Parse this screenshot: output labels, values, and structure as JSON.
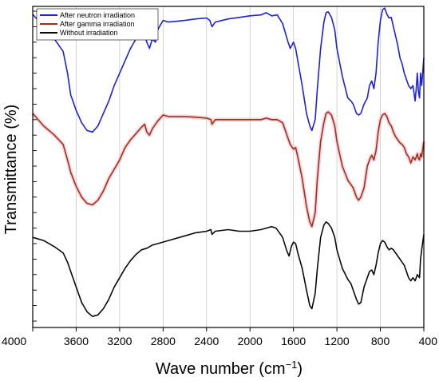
{
  "chart_data": {
    "type": "line",
    "title": "",
    "xlabel": "Wave number (cm",
    "xlabel_sup": "−1",
    "xlabel_close": ")",
    "ylabel": "Transmittance (%)",
    "xlim": [
      4000,
      400
    ],
    "x_reversed": true,
    "y_ticks_labeled": false,
    "ylim": [
      0,
      100
    ],
    "grid": "vertical",
    "legend_position": "top-left",
    "x_ticks": [
      4000,
      3600,
      3200,
      2800,
      2400,
      2000,
      1600,
      1200,
      800,
      400
    ],
    "x_tick_labels": [
      "4000",
      "3600",
      "3200",
      "2800",
      "2400",
      "2000",
      "1600",
      "1200",
      "800",
      "400"
    ],
    "series": [
      {
        "name": "After neutron irradiation",
        "color": "#1f1fe0",
        "points": [
          [
            4000,
            99
          ],
          [
            3900,
            95
          ],
          [
            3800,
            91
          ],
          [
            3720,
            87
          ],
          [
            3680,
            80
          ],
          [
            3650,
            73
          ],
          [
            3600,
            68
          ],
          [
            3550,
            64
          ],
          [
            3500,
            61.5
          ],
          [
            3450,
            61
          ],
          [
            3400,
            63
          ],
          [
            3350,
            67
          ],
          [
            3300,
            71
          ],
          [
            3250,
            76
          ],
          [
            3200,
            80
          ],
          [
            3150,
            84
          ],
          [
            3100,
            88
          ],
          [
            3050,
            91
          ],
          [
            3000,
            93
          ],
          [
            2980,
            94
          ],
          [
            2950,
            90
          ],
          [
            2925,
            88
          ],
          [
            2900,
            91
          ],
          [
            2870,
            90
          ],
          [
            2850,
            94
          ],
          [
            2800,
            97
          ],
          [
            2750,
            96.5
          ],
          [
            2600,
            97
          ],
          [
            2500,
            97.5
          ],
          [
            2400,
            97.8
          ],
          [
            2370,
            97
          ],
          [
            2350,
            95
          ],
          [
            2320,
            96.5
          ],
          [
            2200,
            97.5
          ],
          [
            2100,
            98
          ],
          [
            2000,
            98.5
          ],
          [
            1900,
            98.8
          ],
          [
            1850,
            99.5
          ],
          [
            1800,
            98.5
          ],
          [
            1750,
            98.8
          ],
          [
            1700,
            96
          ],
          [
            1650,
            90
          ],
          [
            1630,
            88
          ],
          [
            1600,
            90
          ],
          [
            1580,
            88
          ],
          [
            1560,
            84
          ],
          [
            1520,
            76
          ],
          [
            1480,
            67
          ],
          [
            1450,
            63
          ],
          [
            1430,
            61.5
          ],
          [
            1400,
            65
          ],
          [
            1380,
            75
          ],
          [
            1350,
            88
          ],
          [
            1320,
            96.5
          ],
          [
            1300,
            99.5
          ],
          [
            1280,
            99.8
          ],
          [
            1250,
            98
          ],
          [
            1220,
            94
          ],
          [
            1200,
            88
          ],
          [
            1150,
            79
          ],
          [
            1100,
            72
          ],
          [
            1070,
            71
          ],
          [
            1050,
            70
          ],
          [
            1020,
            67
          ],
          [
            1000,
            66.5
          ],
          [
            980,
            67
          ],
          [
            950,
            70
          ],
          [
            920,
            72
          ],
          [
            900,
            76
          ],
          [
            880,
            77.5
          ],
          [
            860,
            75
          ],
          [
            840,
            80
          ],
          [
            820,
            90
          ],
          [
            800,
            97
          ],
          [
            780,
            100.5
          ],
          [
            760,
            101
          ],
          [
            740,
            99
          ],
          [
            720,
            97.8
          ],
          [
            700,
            98
          ],
          [
            680,
            95
          ],
          [
            660,
            92
          ],
          [
            640,
            89
          ],
          [
            620,
            85
          ],
          [
            600,
            83
          ],
          [
            580,
            80
          ],
          [
            560,
            78
          ],
          [
            540,
            76
          ],
          [
            520,
            75
          ],
          [
            500,
            76
          ],
          [
            480,
            71
          ],
          [
            470,
            75
          ],
          [
            460,
            80
          ],
          [
            450,
            74
          ],
          [
            440,
            72
          ],
          [
            430,
            80
          ],
          [
            420,
            76
          ],
          [
            400,
            85
          ]
        ]
      },
      {
        "name": "After gamma irradiation",
        "color": "#a0321a",
        "points": [
          [
            4000,
            67
          ],
          [
            3900,
            63
          ],
          [
            3800,
            60
          ],
          [
            3720,
            57
          ],
          [
            3680,
            52
          ],
          [
            3650,
            48
          ],
          [
            3600,
            43.5
          ],
          [
            3550,
            40
          ],
          [
            3500,
            38
          ],
          [
            3450,
            37.5
          ],
          [
            3400,
            39
          ],
          [
            3350,
            42
          ],
          [
            3300,
            46
          ],
          [
            3250,
            49
          ],
          [
            3200,
            52
          ],
          [
            3150,
            56
          ],
          [
            3100,
            58.5
          ],
          [
            3050,
            60.5
          ],
          [
            3000,
            62.5
          ],
          [
            2970,
            63.5
          ],
          [
            2950,
            61
          ],
          [
            2925,
            60
          ],
          [
            2900,
            62
          ],
          [
            2870,
            63.5
          ],
          [
            2850,
            64.5
          ],
          [
            2800,
            66.5
          ],
          [
            2750,
            66
          ],
          [
            2600,
            66
          ],
          [
            2500,
            65.8
          ],
          [
            2400,
            65.5
          ],
          [
            2360,
            65
          ],
          [
            2350,
            63.5
          ],
          [
            2320,
            65
          ],
          [
            2200,
            65
          ],
          [
            2100,
            65
          ],
          [
            2000,
            65
          ],
          [
            1900,
            65
          ],
          [
            1850,
            65.5
          ],
          [
            1800,
            65
          ],
          [
            1750,
            65
          ],
          [
            1700,
            64
          ],
          [
            1650,
            59
          ],
          [
            1630,
            57
          ],
          [
            1600,
            55.5
          ],
          [
            1580,
            56
          ],
          [
            1560,
            53
          ],
          [
            1520,
            46
          ],
          [
            1480,
            37
          ],
          [
            1450,
            32
          ],
          [
            1430,
            30.5
          ],
          [
            1400,
            35
          ],
          [
            1380,
            46
          ],
          [
            1350,
            58
          ],
          [
            1320,
            64
          ],
          [
            1300,
            67
          ],
          [
            1280,
            67.5
          ],
          [
            1250,
            66.5
          ],
          [
            1220,
            63
          ],
          [
            1200,
            58
          ],
          [
            1150,
            50
          ],
          [
            1100,
            45.5
          ],
          [
            1070,
            44
          ],
          [
            1050,
            43
          ],
          [
            1020,
            40
          ],
          [
            1000,
            39
          ],
          [
            980,
            40
          ],
          [
            950,
            43
          ],
          [
            920,
            50
          ],
          [
            900,
            52
          ],
          [
            880,
            53.5
          ],
          [
            860,
            52
          ],
          [
            840,
            55
          ],
          [
            820,
            61
          ],
          [
            800,
            65
          ],
          [
            780,
            66.5
          ],
          [
            760,
            67
          ],
          [
            740,
            66
          ],
          [
            720,
            64
          ],
          [
            700,
            63
          ],
          [
            680,
            61
          ],
          [
            660,
            59.5
          ],
          [
            640,
            58.5
          ],
          [
            620,
            57.5
          ],
          [
            600,
            57
          ],
          [
            580,
            56
          ],
          [
            560,
            54
          ],
          [
            540,
            53
          ],
          [
            520,
            51
          ],
          [
            500,
            53
          ],
          [
            480,
            52
          ],
          [
            470,
            53
          ],
          [
            460,
            54
          ],
          [
            450,
            52.5
          ],
          [
            440,
            52
          ],
          [
            430,
            54
          ],
          [
            420,
            53
          ],
          [
            400,
            58
          ]
        ]
      },
      {
        "name": "Without irradiation",
        "color": "#0a0a0a",
        "points": [
          [
            4000,
            27
          ],
          [
            3900,
            26
          ],
          [
            3800,
            24
          ],
          [
            3720,
            22
          ],
          [
            3680,
            19
          ],
          [
            3650,
            16
          ],
          [
            3600,
            11
          ],
          [
            3550,
            6
          ],
          [
            3500,
            3
          ],
          [
            3450,
            1.5
          ],
          [
            3400,
            2
          ],
          [
            3350,
            4
          ],
          [
            3300,
            7
          ],
          [
            3250,
            11
          ],
          [
            3200,
            14
          ],
          [
            3150,
            17
          ],
          [
            3100,
            19.5
          ],
          [
            3050,
            21.5
          ],
          [
            3000,
            23
          ],
          [
            2950,
            23.5
          ],
          [
            2900,
            24.5
          ],
          [
            2850,
            25
          ],
          [
            2800,
            25.5
          ],
          [
            2750,
            26
          ],
          [
            2600,
            27.5
          ],
          [
            2500,
            28.5
          ],
          [
            2400,
            29
          ],
          [
            2360,
            29.5
          ],
          [
            2350,
            28
          ],
          [
            2320,
            29
          ],
          [
            2200,
            29.5
          ],
          [
            2100,
            29
          ],
          [
            2000,
            29
          ],
          [
            1900,
            29.5
          ],
          [
            1850,
            30
          ],
          [
            1800,
            30.5
          ],
          [
            1760,
            30
          ],
          [
            1700,
            27
          ],
          [
            1660,
            22.5
          ],
          [
            1640,
            21
          ],
          [
            1620,
            24
          ],
          [
            1600,
            25.5
          ],
          [
            1580,
            25
          ],
          [
            1560,
            22
          ],
          [
            1520,
            17
          ],
          [
            1480,
            10
          ],
          [
            1450,
            5
          ],
          [
            1430,
            4
          ],
          [
            1400,
            9
          ],
          [
            1380,
            17
          ],
          [
            1350,
            27
          ],
          [
            1320,
            31
          ],
          [
            1300,
            32
          ],
          [
            1280,
            31.5
          ],
          [
            1250,
            30
          ],
          [
            1220,
            27
          ],
          [
            1200,
            23
          ],
          [
            1150,
            17
          ],
          [
            1100,
            13.5
          ],
          [
            1070,
            12
          ],
          [
            1050,
            10
          ],
          [
            1020,
            7
          ],
          [
            1000,
            5.5
          ],
          [
            980,
            6
          ],
          [
            950,
            11
          ],
          [
            920,
            14
          ],
          [
            900,
            16
          ],
          [
            880,
            16.5
          ],
          [
            860,
            15
          ],
          [
            840,
            18
          ],
          [
            820,
            22
          ],
          [
            800,
            25
          ],
          [
            780,
            26
          ],
          [
            760,
            25.5
          ],
          [
            740,
            24
          ],
          [
            720,
            23
          ],
          [
            700,
            23.5
          ],
          [
            680,
            23
          ],
          [
            660,
            22
          ],
          [
            640,
            21
          ],
          [
            620,
            20
          ],
          [
            600,
            19
          ],
          [
            580,
            18
          ],
          [
            560,
            16
          ],
          [
            540,
            14
          ],
          [
            520,
            13
          ],
          [
            500,
            14
          ],
          [
            480,
            13
          ],
          [
            470,
            14
          ],
          [
            460,
            15
          ],
          [
            450,
            14.5
          ],
          [
            440,
            14
          ],
          [
            430,
            20
          ],
          [
            420,
            23
          ],
          [
            400,
            28
          ]
        ]
      }
    ]
  }
}
